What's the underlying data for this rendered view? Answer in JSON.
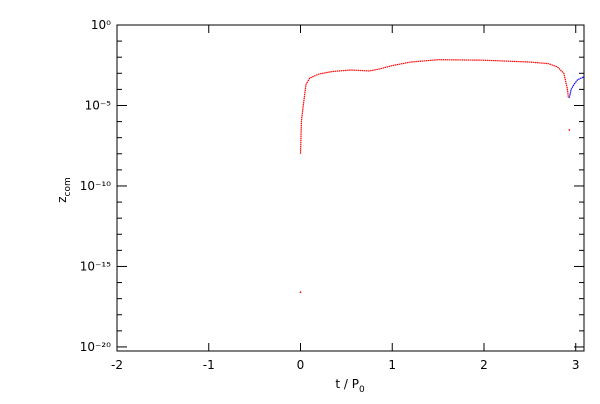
{
  "chart_data": {
    "type": "line",
    "xlabel": "t / P",
    "xlabel_sub": "0",
    "ylabel": "z",
    "ylabel_sub": "com",
    "xlim": [
      -2,
      3.09
    ],
    "xticks": [
      -2,
      -1,
      0,
      1,
      2,
      3
    ],
    "ylim": [
      5.6e-21,
      1
    ],
    "log_y": true,
    "yticks": [
      {
        "value": 1,
        "label": "10⁰"
      },
      {
        "value": 1e-05,
        "label": "10⁻⁵"
      },
      {
        "value": 1e-10,
        "label": "10⁻¹⁰"
      },
      {
        "value": 1e-15,
        "label": "10⁻¹⁵"
      },
      {
        "value": 1e-20,
        "label": "10⁻²⁰"
      }
    ],
    "yminorticks": [
      0.1,
      0.01,
      0.001,
      0.0001,
      1e-06,
      1e-07,
      1e-08,
      1e-09,
      1e-11,
      1e-12,
      1e-13,
      1e-14,
      1e-16,
      1e-17,
      1e-18,
      1e-19
    ],
    "series": [
      {
        "color": "#ff0000",
        "x": [
          0,
          null,
          0,
          0.01,
          0.03,
          0.06,
          0.1,
          0.2,
          0.35,
          0.55,
          0.75,
          0.85,
          1.0,
          1.2,
          1.5,
          2.0,
          2.5,
          2.7,
          2.8,
          2.87,
          2.91,
          2.92,
          null,
          2.93
        ],
        "values": [
          2.5e-17,
          null,
          1e-08,
          1e-06,
          1e-05,
          0.0002,
          0.0005,
          0.0009,
          0.0013,
          0.0016,
          0.0014,
          0.0018,
          0.003,
          0.005,
          0.007,
          0.0065,
          0.005,
          0.004,
          0.0025,
          0.001,
          0.0001,
          3e-05,
          null,
          3e-07
        ]
      },
      {
        "color": "#0000ff",
        "x": [
          2.93,
          2.95,
          2.98,
          3.02,
          3.09
        ],
        "values": [
          3e-05,
          0.0001,
          0.0002,
          0.0004,
          0.0006
        ]
      }
    ]
  }
}
